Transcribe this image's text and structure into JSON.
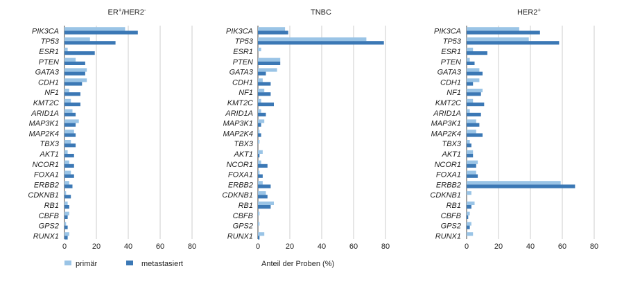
{
  "colors": {
    "primary": "#9ac4e6",
    "metastatic": "#3b78b5",
    "grid": "#cccccc",
    "axis": "#444444"
  },
  "legend": {
    "primary_label": "primär",
    "metastatic_label": "metastasiert"
  },
  "x_axis_label": "Anteil der Proben (%)",
  "chart_data": [
    {
      "type": "bar",
      "orientation": "horizontal",
      "title": {
        "base": "ER",
        "sup1": "+",
        "mid": "/HER2",
        "sup2": "-"
      },
      "categories": [
        "PIK3CA",
        "TP53",
        "ESR1",
        "PTEN",
        "GATA3",
        "CDH1",
        "NF1",
        "KMT2C",
        "ARID1A",
        "MAP3K1",
        "MAP2K4",
        "TBX3",
        "AKT1",
        "NCOR1",
        "FOXA1",
        "ERBB2",
        "CDKNB1",
        "RB1",
        "CBFB",
        "GPS2",
        "RUNX1"
      ],
      "xticks": [
        0,
        20,
        40,
        60,
        80
      ],
      "xlim": [
        0,
        85
      ],
      "series": [
        {
          "name": "primär",
          "values": [
            38,
            16,
            2,
            7,
            14,
            14,
            3,
            4,
            5,
            9,
            6,
            4,
            2,
            3,
            4,
            3,
            1,
            2,
            3,
            1,
            3
          ]
        },
        {
          "name": "metastasiert",
          "values": [
            46,
            32,
            19,
            13,
            13,
            11,
            10,
            10,
            7,
            7,
            7,
            7,
            6,
            6,
            6,
            5,
            4,
            3,
            2,
            2,
            2
          ]
        }
      ]
    },
    {
      "type": "bar",
      "orientation": "horizontal",
      "title": {
        "base": "TNBC",
        "sup1": "",
        "mid": "",
        "sup2": ""
      },
      "categories": [
        "PIK3CA",
        "TP53",
        "ESR1",
        "PTEN",
        "GATA3",
        "CDH1",
        "NF1",
        "KMT2C",
        "ARID1A",
        "MAP3K1",
        "MAP2K4",
        "TBX3",
        "AKT1",
        "NCOR1",
        "FOXA1",
        "ERBB2",
        "CDKNB1",
        "RB1",
        "CBFB",
        "GPS2",
        "RUNX1"
      ],
      "xticks": [
        0,
        20,
        40,
        60,
        80
      ],
      "xlim": [
        0,
        85
      ],
      "series": [
        {
          "name": "primär",
          "values": [
            17,
            68,
            2,
            14,
            12,
            3,
            4,
            2,
            2,
            4,
            1,
            1,
            3,
            2,
            1,
            3,
            5,
            10,
            1,
            1,
            4
          ]
        },
        {
          "name": "metastasiert",
          "values": [
            19,
            79,
            0,
            14,
            5,
            8,
            8,
            10,
            5,
            2,
            2,
            0,
            1,
            6,
            3,
            8,
            6,
            8,
            0,
            0,
            1
          ]
        }
      ]
    },
    {
      "type": "bar",
      "orientation": "horizontal",
      "title": {
        "base": "HER2",
        "sup1": "+",
        "mid": "",
        "sup2": ""
      },
      "categories": [
        "PIK3CA",
        "TP53",
        "ESR1",
        "PTEN",
        "GATA3",
        "CDH1",
        "NF1",
        "KMT2C",
        "ARID1A",
        "MAP3K1",
        "MAP2K4",
        "TBX3",
        "AKT1",
        "NCOR1",
        "FOXA1",
        "ERBB2",
        "CDKNB1",
        "RB1",
        "CBFB",
        "GPS2",
        "RUNX1"
      ],
      "xticks": [
        0,
        20,
        40,
        60,
        80
      ],
      "xlim": [
        0,
        85
      ],
      "series": [
        {
          "name": "primär",
          "values": [
            33,
            39,
            4,
            2,
            8,
            8,
            10,
            4,
            2,
            6,
            6,
            2,
            4,
            7,
            6,
            59,
            3,
            5,
            2,
            3,
            4
          ]
        },
        {
          "name": "metastasiert",
          "values": [
            46,
            58,
            13,
            5,
            10,
            4,
            9,
            11,
            9,
            8,
            10,
            3,
            4,
            6,
            7,
            68,
            0,
            3,
            1,
            2,
            0
          ]
        }
      ]
    }
  ]
}
